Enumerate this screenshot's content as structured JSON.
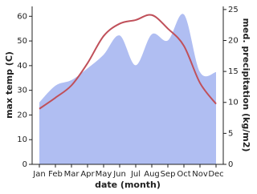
{
  "chart_data": {
    "type": "line",
    "x_label": "date (month)",
    "y_label": "max temp (C)",
    "y2_label": "med. precipitation (kg/m2)",
    "categories": [
      "Jan",
      "Feb",
      "Mar",
      "Apr",
      "May",
      "Jun",
      "Jul",
      "Aug",
      "Sep",
      "Oct",
      "Nov",
      "Dec"
    ],
    "series": [
      {
        "name": "med. precipitation",
        "color": "#b0bef2",
        "fill": true,
        "axis": "y2",
        "values": [
          10,
          12.7,
          13.6,
          15.5,
          17.7,
          20.8,
          16,
          21,
          20,
          24.2,
          14.9,
          14.9
        ]
      },
      {
        "name": "max temp",
        "color": "#c0505a",
        "fill": false,
        "axis": "y",
        "values": [
          22.5,
          27,
          32,
          41,
          52,
          57,
          58.5,
          60.5,
          55,
          48,
          33,
          24.5
        ]
      }
    ],
    "ylim": [
      0,
      64
    ],
    "yticks": [
      0,
      10,
      20,
      30,
      40,
      50,
      60
    ],
    "y2lim": [
      0,
      25.5
    ],
    "y2ticks": [
      0,
      5,
      10,
      15,
      20,
      25
    ]
  }
}
